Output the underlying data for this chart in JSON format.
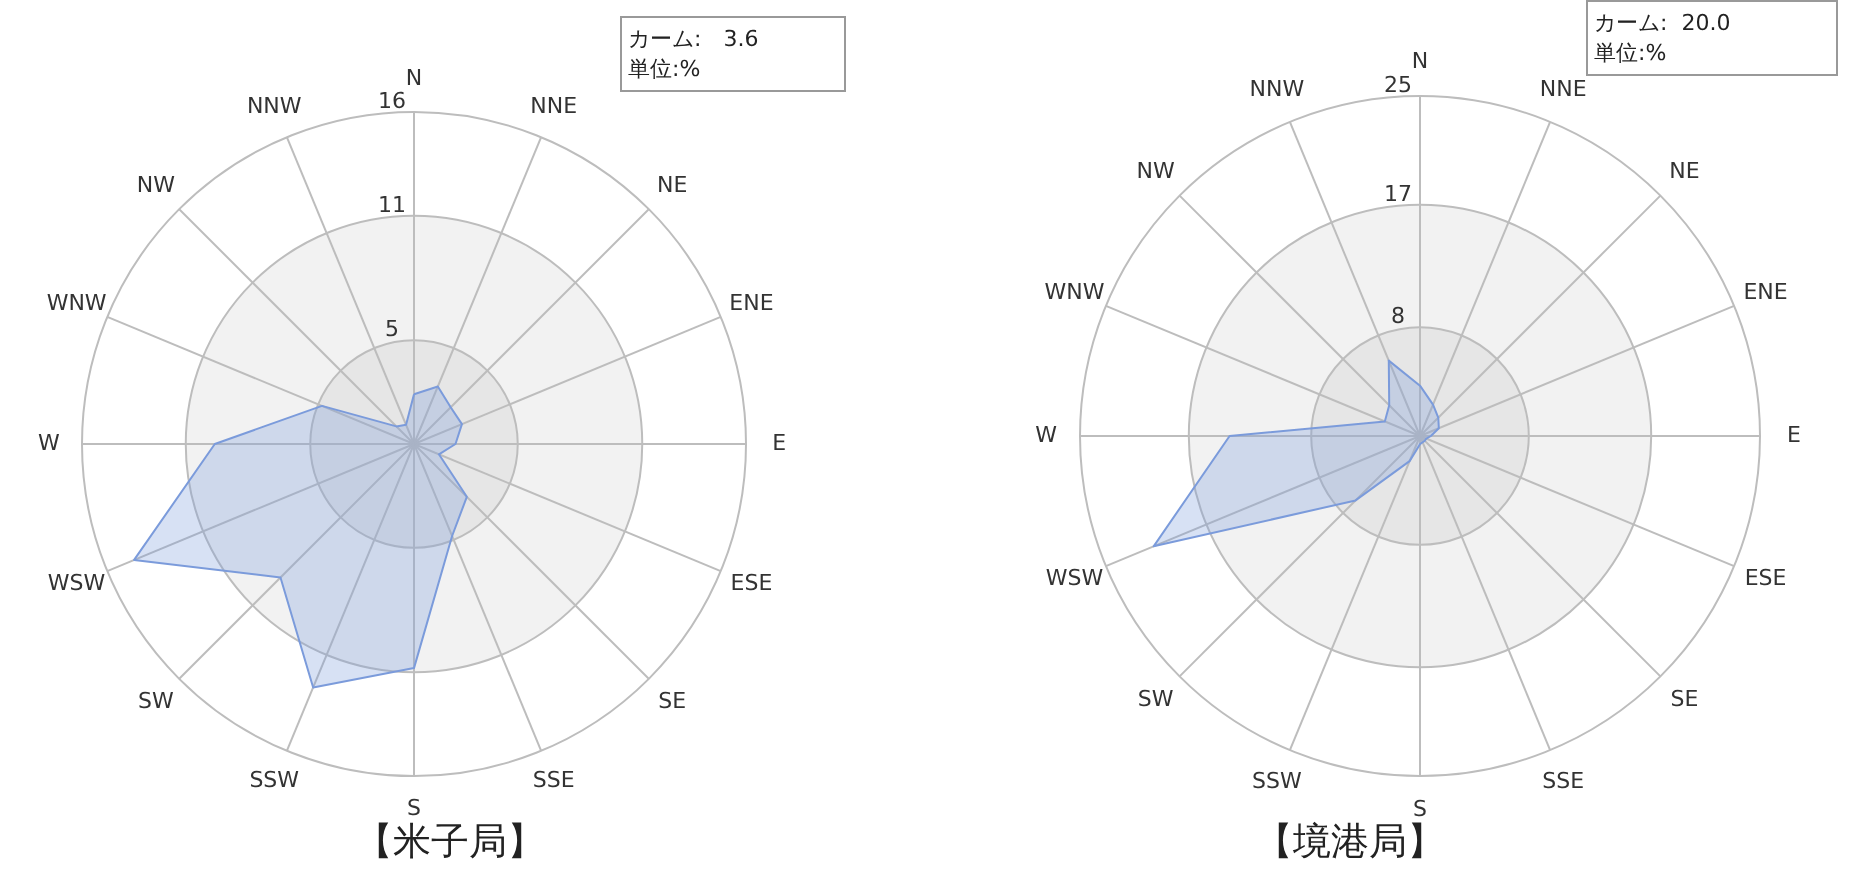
{
  "chart_data": [
    {
      "type": "radar",
      "title": "【米子局】",
      "categories": [
        "N",
        "NNE",
        "NE",
        "ENE",
        "E",
        "ESE",
        "SE",
        "SSE",
        "S",
        "SSW",
        "SW",
        "WSW",
        "W",
        "WNW",
        "NW",
        "NNW"
      ],
      "series": [
        {
          "color": "#7b9bdb",
          "values": [
            2.4,
            3.0,
            2.5,
            2.5,
            2.0,
            1.3,
            3.6,
            4.8,
            10.8,
            12.7,
            9.1,
            14.6,
            9.6,
            4.8,
            1.2,
            1.0
          ]
        }
      ],
      "ylim": [
        0,
        16
      ],
      "yticks": [
        5,
        11,
        16
      ],
      "grid": true,
      "annotations": [
        "カーム:　3.6",
        "単位:%"
      ]
    },
    {
      "type": "radar",
      "title": "【境港局】",
      "categories": [
        "N",
        "NNE",
        "NE",
        "ENE",
        "E",
        "ESE",
        "SE",
        "SSE",
        "S",
        "SSW",
        "SW",
        "WSW",
        "W",
        "WNW",
        "NW",
        "NNW"
      ],
      "series": [
        {
          "color": "#7b9bdb",
          "values": [
            3.7,
            2.5,
            1.9,
            1.5,
            0.8,
            0.5,
            0.5,
            0.5,
            0.6,
            2.0,
            6.7,
            21.2,
            14.0,
            2.8,
            3.2,
            6.0
          ]
        }
      ],
      "ylim": [
        0,
        25
      ],
      "yticks": [
        8,
        17,
        25
      ],
      "grid": true,
      "annotations": [
        "カーム:  20.0",
        "単位:%"
      ]
    }
  ]
}
